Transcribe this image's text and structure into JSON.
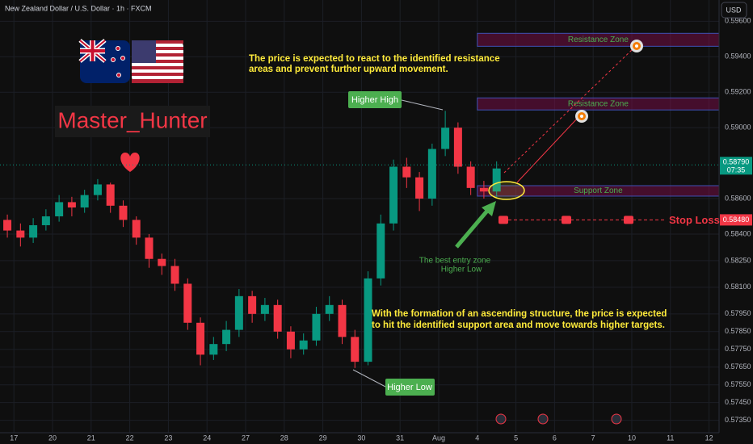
{
  "chart_data": {
    "type": "candlestick",
    "title": "New Zealand Dollar / U.S. Dollar · 1h · FXCM",
    "currency": "USD",
    "watermark": "Master_Hunter",
    "x": [
      -0.17,
      0.17,
      0.5,
      0.83,
      1.17,
      1.5,
      1.83,
      2.17,
      2.5,
      2.83,
      3.17,
      3.5,
      3.83,
      4.17,
      4.5,
      4.83,
      5.17,
      5.5,
      5.83,
      6.17,
      6.5,
      6.83,
      7.17,
      7.5,
      7.83,
      8.17,
      8.5,
      8.83,
      9.17,
      9.5,
      9.83,
      10.17,
      10.5,
      10.83,
      11.17,
      11.5,
      11.83,
      12.17,
      12.5
    ],
    "open": [
      0.5848,
      0.5842,
      0.5838,
      0.5845,
      0.585,
      0.5858,
      0.5855,
      0.5862,
      0.5868,
      0.5856,
      0.5848,
      0.5838,
      0.5826,
      0.5822,
      0.5812,
      0.579,
      0.5772,
      0.5778,
      0.5786,
      0.5805,
      0.5795,
      0.58,
      0.5785,
      0.5775,
      0.578,
      0.5795,
      0.58,
      0.5782,
      0.5768,
      0.5815,
      0.5846,
      0.5878,
      0.5872,
      0.586,
      0.5888,
      0.59,
      0.5878,
      0.5866,
      0.5864
    ],
    "high": [
      0.5851,
      0.5846,
      0.5849,
      0.5854,
      0.5862,
      0.5861,
      0.5865,
      0.5871,
      0.5869,
      0.5859,
      0.585,
      0.584,
      0.5829,
      0.5826,
      0.5815,
      0.5793,
      0.5782,
      0.5791,
      0.5809,
      0.5808,
      0.5804,
      0.5803,
      0.5788,
      0.5784,
      0.5799,
      0.5805,
      0.5803,
      0.5786,
      0.5819,
      0.5851,
      0.5882,
      0.5883,
      0.5875,
      0.5891,
      0.59095,
      0.5903,
      0.5881,
      0.587,
      0.5881
    ],
    "low": [
      0.5838,
      0.5833,
      0.5835,
      0.5842,
      0.5847,
      0.585,
      0.5852,
      0.5859,
      0.5852,
      0.5844,
      0.5834,
      0.5821,
      0.5817,
      0.5808,
      0.5786,
      0.5766,
      0.5769,
      0.5774,
      0.5782,
      0.579,
      0.5791,
      0.5781,
      0.577,
      0.5772,
      0.5777,
      0.5791,
      0.5778,
      0.57645,
      0.5766,
      0.5811,
      0.5842,
      0.5866,
      0.5853,
      0.5856,
      0.5884,
      0.5874,
      0.5862,
      0.586,
      0.5861
    ],
    "close": [
      0.5842,
      0.5838,
      0.5845,
      0.585,
      0.5858,
      0.5855,
      0.5862,
      0.5868,
      0.5856,
      0.5848,
      0.5838,
      0.5826,
      0.5822,
      0.5812,
      0.579,
      0.5772,
      0.5778,
      0.5786,
      0.5805,
      0.5795,
      0.58,
      0.5785,
      0.5775,
      0.578,
      0.5795,
      0.58,
      0.5782,
      0.5768,
      0.5815,
      0.5846,
      0.5878,
      0.5872,
      0.586,
      0.5888,
      0.59,
      0.5878,
      0.5866,
      0.5864,
      0.5877
    ],
    "up_color": "#089981",
    "down_color": "#f23645",
    "xlim": [
      -0.36,
      18.26
    ],
    "xticks": [
      {
        "value": 0,
        "label": "17"
      },
      {
        "value": 1,
        "label": "20"
      },
      {
        "value": 2,
        "label": "21"
      },
      {
        "value": 3,
        "label": "22"
      },
      {
        "value": 4,
        "label": "23"
      },
      {
        "value": 5,
        "label": "24"
      },
      {
        "value": 6,
        "label": "27"
      },
      {
        "value": 7,
        "label": "28"
      },
      {
        "value": 8,
        "label": "29"
      },
      {
        "value": 9,
        "label": "30"
      },
      {
        "value": 10,
        "label": "31"
      },
      {
        "value": 11,
        "label": "Aug"
      },
      {
        "value": 12,
        "label": "4"
      },
      {
        "value": 13,
        "label": "5"
      },
      {
        "value": 14,
        "label": "6"
      },
      {
        "value": 15,
        "label": "7"
      },
      {
        "value": 16,
        "label": "10"
      },
      {
        "value": 17,
        "label": "11"
      },
      {
        "value": 18,
        "label": "12"
      }
    ],
    "ylim": [
      0.5728,
      0.5972
    ],
    "yticks": [
      {
        "value": 0.596,
        "label": "0.59600"
      },
      {
        "value": 0.594,
        "label": "0.59400"
      },
      {
        "value": 0.592,
        "label": "0.59200"
      },
      {
        "value": 0.59,
        "label": "0.59000"
      },
      {
        "value": 0.586,
        "label": "0.58600"
      },
      {
        "value": 0.584,
        "label": "0.58400"
      },
      {
        "value": 0.5825,
        "label": "0.58250"
      },
      {
        "value": 0.581,
        "label": "0.58100"
      },
      {
        "value": 0.5795,
        "label": "0.57950"
      },
      {
        "value": 0.5785,
        "label": "0.57850"
      },
      {
        "value": 0.5775,
        "label": "0.57750"
      },
      {
        "value": 0.5765,
        "label": "0.57650"
      },
      {
        "value": 0.5755,
        "label": "0.57550"
      },
      {
        "value": 0.5745,
        "label": "0.57450"
      },
      {
        "value": 0.5735,
        "label": "0.57350"
      }
    ],
    "grid": true,
    "zones": [
      {
        "label": "Resistance Zone",
        "low": 0.59459,
        "high": 0.59532,
        "from": 12.0
      },
      {
        "label": "Resistance Zone",
        "low": 0.591,
        "high": 0.59168,
        "from": 12.0
      },
      {
        "label": "Support Zone",
        "low": 0.58614,
        "high": 0.58673,
        "from": 12.0
      }
    ],
    "current_price": {
      "value": 0.5879,
      "label": "0.58790"
    },
    "countdown": "07:35",
    "stop_loss": {
      "name": "Stop Loss",
      "value": 0.5848,
      "label": "0.58480"
    },
    "notes": [
      [
        "The price is expected to react to the identified resistance",
        "areas and prevent further upward movement."
      ],
      [
        "With the formation of an ascending structure, the price is expected",
        "to hit the identified support area and move towards higher targets."
      ]
    ],
    "higher_high": "Higher High",
    "higher_low": "Higher Low",
    "entry": [
      "The best entry zone",
      "Higher Low"
    ]
  }
}
